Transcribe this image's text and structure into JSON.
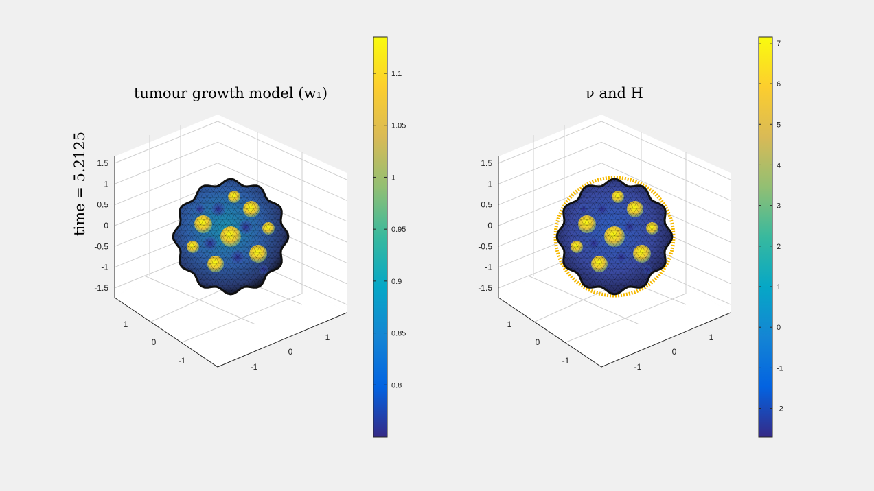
{
  "time_label": "time = 5.2125",
  "chart_data": [
    {
      "type": "3d-surface",
      "title": "tumour growth model (w₁)",
      "axes": {
        "vertical_ticks": [
          "-1.5",
          "-1",
          "-0.5",
          "0",
          "0.5",
          "1",
          "1.5"
        ],
        "left_ticks": [
          "-1",
          "0",
          "1"
        ],
        "right_ticks": [
          "-1",
          "0",
          "1"
        ]
      },
      "colorbar": {
        "colormap": "parula",
        "range": [
          0.75,
          1.135
        ],
        "ticks": [
          "0.8",
          "0.85",
          "0.9",
          "0.95",
          "1",
          "1.05",
          "1.1"
        ],
        "tick_values": [
          0.8,
          0.85,
          0.9,
          0.95,
          1,
          1.05,
          1.1
        ]
      },
      "surface": {
        "shape": "bumpy sphere",
        "mesh": "triangulated",
        "bumps_high": "yellow",
        "valleys": "blue"
      }
    },
    {
      "type": "3d-surface",
      "title": "ν and H",
      "axes": {
        "vertical_ticks": [
          "-1.5",
          "-1",
          "-0.5",
          "0",
          "0.5",
          "1",
          "1.5"
        ],
        "left_ticks": [
          "-1",
          "0",
          "1"
        ],
        "right_ticks": [
          "-1",
          "0",
          "1"
        ]
      },
      "colorbar": {
        "colormap": "parula",
        "range": [
          -2.7,
          7.15
        ],
        "ticks": [
          "-2",
          "-1",
          "0",
          "1",
          "2",
          "3",
          "4",
          "5",
          "6",
          "7"
        ],
        "tick_values": [
          -2,
          -1,
          0,
          1,
          2,
          3,
          4,
          5,
          6,
          7
        ]
      },
      "surface": {
        "shape": "bumpy sphere",
        "mesh": "triangulated",
        "normals_shown": true,
        "rim_color": "#f5b800"
      }
    }
  ],
  "colors": {
    "parula": [
      "#352a87",
      "#0363e1",
      "#1485d4",
      "#06a7c6",
      "#38b99e",
      "#92bf73",
      "#d9ba56",
      "#fcce2e",
      "#f9fb0e"
    ],
    "background": "#f0f0f0"
  }
}
